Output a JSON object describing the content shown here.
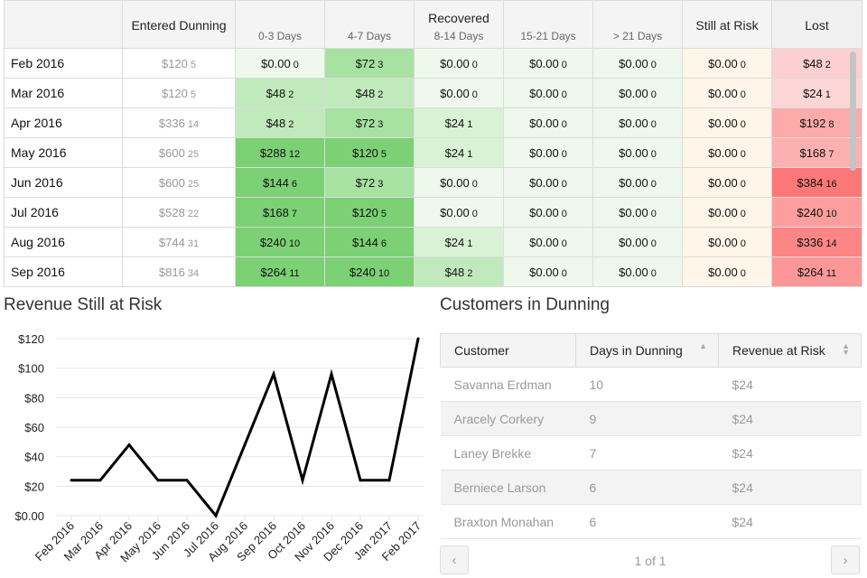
{
  "cohort": {
    "headers": {
      "entered": "Entered Dunning",
      "group": "Recovered",
      "d03": "0-3 Days",
      "d47": "4-7 Days",
      "d814": "8-14 Days",
      "d1521": "15-21 Days",
      "d21": "> 21 Days",
      "still": "Still at Risk",
      "lost": "Lost"
    },
    "rows": [
      {
        "month": "Feb 2016",
        "entered": [
          "$120",
          "5"
        ],
        "d03": [
          "$0.00",
          "0"
        ],
        "d47": [
          "$72",
          "3"
        ],
        "d814": [
          "$0.00",
          "0"
        ],
        "d1521": [
          "$0.00",
          "0"
        ],
        "d21": [
          "$0.00",
          "0"
        ],
        "still": [
          "$0.00",
          "0"
        ],
        "lost": [
          "$48",
          "2"
        ]
      },
      {
        "month": "Mar 2016",
        "entered": [
          "$120",
          "5"
        ],
        "d03": [
          "$48",
          "2"
        ],
        "d47": [
          "$48",
          "2"
        ],
        "d814": [
          "$0.00",
          "0"
        ],
        "d1521": [
          "$0.00",
          "0"
        ],
        "d21": [
          "$0.00",
          "0"
        ],
        "still": [
          "$0.00",
          "0"
        ],
        "lost": [
          "$24",
          "1"
        ]
      },
      {
        "month": "Apr 2016",
        "entered": [
          "$336",
          "14"
        ],
        "d03": [
          "$48",
          "2"
        ],
        "d47": [
          "$72",
          "3"
        ],
        "d814": [
          "$24",
          "1"
        ],
        "d1521": [
          "$0.00",
          "0"
        ],
        "d21": [
          "$0.00",
          "0"
        ],
        "still": [
          "$0.00",
          "0"
        ],
        "lost": [
          "$192",
          "8"
        ]
      },
      {
        "month": "May 2016",
        "entered": [
          "$600",
          "25"
        ],
        "d03": [
          "$288",
          "12"
        ],
        "d47": [
          "$120",
          "5"
        ],
        "d814": [
          "$24",
          "1"
        ],
        "d1521": [
          "$0.00",
          "0"
        ],
        "d21": [
          "$0.00",
          "0"
        ],
        "still": [
          "$0.00",
          "0"
        ],
        "lost": [
          "$168",
          "7"
        ]
      },
      {
        "month": "Jun 2016",
        "entered": [
          "$600",
          "25"
        ],
        "d03": [
          "$144",
          "6"
        ],
        "d47": [
          "$72",
          "3"
        ],
        "d814": [
          "$0.00",
          "0"
        ],
        "d1521": [
          "$0.00",
          "0"
        ],
        "d21": [
          "$0.00",
          "0"
        ],
        "still": [
          "$0.00",
          "0"
        ],
        "lost": [
          "$384",
          "16"
        ]
      },
      {
        "month": "Jul 2016",
        "entered": [
          "$528",
          "22"
        ],
        "d03": [
          "$168",
          "7"
        ],
        "d47": [
          "$120",
          "5"
        ],
        "d814": [
          "$0.00",
          "0"
        ],
        "d1521": [
          "$0.00",
          "0"
        ],
        "d21": [
          "$0.00",
          "0"
        ],
        "still": [
          "$0.00",
          "0"
        ],
        "lost": [
          "$240",
          "10"
        ]
      },
      {
        "month": "Aug 2016",
        "entered": [
          "$744",
          "31"
        ],
        "d03": [
          "$240",
          "10"
        ],
        "d47": [
          "$144",
          "6"
        ],
        "d814": [
          "$24",
          "1"
        ],
        "d1521": [
          "$0.00",
          "0"
        ],
        "d21": [
          "$0.00",
          "0"
        ],
        "still": [
          "$0.00",
          "0"
        ],
        "lost": [
          "$336",
          "14"
        ]
      },
      {
        "month": "Sep 2016",
        "entered": [
          "$816",
          "34"
        ],
        "d03": [
          "$264",
          "11"
        ],
        "d47": [
          "$240",
          "10"
        ],
        "d814": [
          "$48",
          "2"
        ],
        "d1521": [
          "$0.00",
          "0"
        ],
        "d21": [
          "$0.00",
          "0"
        ],
        "still": [
          "$0.00",
          "0"
        ],
        "lost": [
          "$264",
          "11"
        ]
      }
    ]
  },
  "risk_chart": {
    "title": "Revenue Still at Risk",
    "line_color": "#000000",
    "chart_data": {
      "type": "line",
      "x": [
        "Feb 2016",
        "Mar 2016",
        "Apr 2016",
        "May 2016",
        "Jun 2016",
        "Jul 2016",
        "Aug 2016",
        "Sep 2016",
        "Oct 2016",
        "Nov 2016",
        "Dec 2016",
        "Jan 2017",
        "Feb 2017"
      ],
      "series": [
        {
          "values": [
            24,
            24,
            48,
            24,
            24,
            0,
            48,
            96,
            24,
            96,
            24,
            24,
            120
          ]
        }
      ],
      "ylim": [
        0,
        120
      ],
      "yticks": [
        "$0.00",
        "$20",
        "$40",
        "$60",
        "$80",
        "$100",
        "$120"
      ],
      "xlabel": "",
      "ylabel": "",
      "grid": true
    }
  },
  "customers": {
    "title": "Customers in Dunning",
    "columns": [
      "Customer",
      "Days in Dunning",
      "Revenue at Risk"
    ],
    "rows": [
      {
        "name": "Savanna Erdman",
        "days": "10",
        "revenue": "$24"
      },
      {
        "name": "Aracely Corkery",
        "days": "9",
        "revenue": "$24"
      },
      {
        "name": "Laney Brekke",
        "days": "7",
        "revenue": "$24"
      },
      {
        "name": "Berniece Larson",
        "days": "6",
        "revenue": "$24"
      },
      {
        "name": "Braxton Monahan",
        "days": "6",
        "revenue": "$24"
      }
    ],
    "pager": {
      "prev": "‹",
      "next": "›",
      "info": "1 of 1"
    }
  }
}
